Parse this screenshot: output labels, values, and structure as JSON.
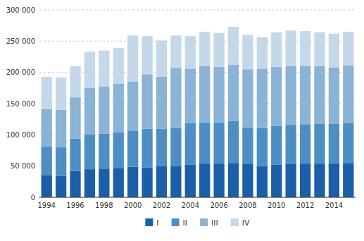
{
  "chart_data": {
    "type": "bar",
    "stacked": true,
    "grid": true,
    "legend": "bottom",
    "categories": [
      "1994",
      null,
      "1996",
      null,
      "1998",
      null,
      "2000",
      null,
      "2002",
      null,
      "2004",
      null,
      "2006",
      null,
      "2008",
      null,
      "2010",
      null,
      "2012",
      null,
      "2014",
      null
    ],
    "series": [
      {
        "name": "I",
        "color": "#1a5fa8",
        "values": [
          35000,
          34000,
          42000,
          45000,
          46000,
          47000,
          49000,
          48000,
          50000,
          50000,
          52000,
          54000,
          54000,
          55000,
          53000,
          50000,
          52000,
          53000,
          54000,
          54000,
          54000,
          55000
        ]
      },
      {
        "name": "II",
        "color": "#4d8ec5",
        "values": [
          46000,
          46000,
          52000,
          56000,
          56000,
          57000,
          57000,
          62000,
          60000,
          61000,
          67000,
          66000,
          66000,
          67000,
          59000,
          61000,
          62000,
          63000,
          63000,
          64000,
          64000,
          64000
        ]
      },
      {
        "name": "III",
        "color": "#8ab3d5",
        "values": [
          60000,
          60000,
          66000,
          74000,
          75000,
          78000,
          79000,
          87000,
          83000,
          96000,
          87000,
          90000,
          89000,
          90000,
          93000,
          95000,
          95000,
          94000,
          93000,
          92000,
          90000,
          92000
        ]
      },
      {
        "name": "IV",
        "color": "#c5d8ea",
        "values": [
          52000,
          52000,
          50000,
          58000,
          58000,
          57000,
          74000,
          61000,
          58000,
          52000,
          52000,
          55000,
          54000,
          61000,
          55000,
          50000,
          55000,
          57000,
          56000,
          54000,
          54000,
          54000
        ]
      }
    ],
    "ylim": [
      0,
      300000
    ],
    "yticks": [
      0,
      {
        "value": 50000,
        "label": "50 000"
      },
      {
        "value": 100000,
        "label": "100 000"
      },
      {
        "value": 150000,
        "label": "150 000"
      },
      {
        "value": 200000,
        "label": "200 000"
      },
      {
        "value": 250000,
        "label": "250 000"
      },
      {
        "value": 300000,
        "label": "300 000"
      }
    ]
  }
}
